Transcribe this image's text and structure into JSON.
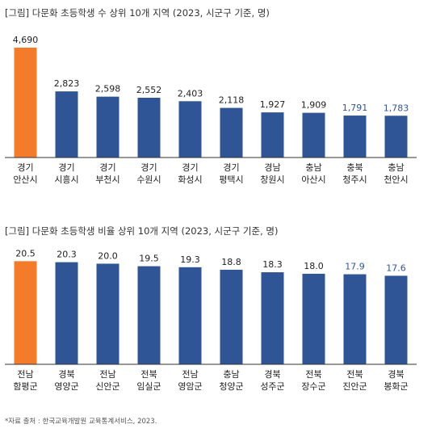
{
  "chart_data": [
    {
      "type": "bar",
      "title": "[그림] 다문화 초등학생 수 상위 10개 지역 (2023, 시군구 기준, 명)",
      "categories": [
        [
          "경기",
          "안산시"
        ],
        [
          "경기",
          "시흥시"
        ],
        [
          "경기",
          "부천시"
        ],
        [
          "경기",
          "수원시"
        ],
        [
          "경기",
          "화성시"
        ],
        [
          "경기",
          "평택시"
        ],
        [
          "경남",
          "창원시"
        ],
        [
          "충남",
          "아산시"
        ],
        [
          "충북",
          "청주시"
        ],
        [
          "충남",
          "천안시"
        ]
      ],
      "values": [
        4690,
        2823,
        2598,
        2552,
        2403,
        2118,
        1927,
        1909,
        1791,
        1783
      ],
      "value_labels": [
        "4,690",
        "2,823",
        "2,598",
        "2,552",
        "2,403",
        "2,118",
        "1,927",
        "1,909",
        "1,791",
        "1,783"
      ],
      "ylim": [
        0,
        5000
      ],
      "grid": false,
      "highlight_index": 0
    },
    {
      "type": "bar",
      "title": "[그림] 다문화 초등학생 비율 상위 10개 지역 (2023, 시군구 기준, 명)",
      "categories": [
        [
          "전남",
          "함평군"
        ],
        [
          "경북",
          "영양군"
        ],
        [
          "전남",
          "신안군"
        ],
        [
          "전북",
          "임실군"
        ],
        [
          "전남",
          "영암군"
        ],
        [
          "충남",
          "청양군"
        ],
        [
          "경북",
          "성주군"
        ],
        [
          "전북",
          "장수군"
        ],
        [
          "전북",
          "진안군"
        ],
        [
          "경북",
          "봉화군"
        ]
      ],
      "values": [
        20.5,
        20.3,
        20.0,
        19.5,
        19.3,
        18.8,
        18.3,
        18.0,
        17.9,
        17.6
      ],
      "value_labels": [
        "20.5",
        "20.3",
        "20.0",
        "19.5",
        "19.3",
        "18.8",
        "18.3",
        "18.0",
        "17.9",
        "17.6"
      ],
      "ylim": [
        0,
        22
      ],
      "grid": false,
      "highlight_index": 0
    }
  ],
  "source": "*자료 출처 : 한국교육개발원 교육통계서비스, 2023.",
  "colors": {
    "highlight": "#f47b2a",
    "bar": "#2f5597",
    "value_label_dark": "#222222",
    "value_label_blue": "#2f5597",
    "axis": "#333333"
  },
  "blue_value_labels": [
    [
      8,
      9
    ],
    [
      8,
      9
    ]
  ]
}
